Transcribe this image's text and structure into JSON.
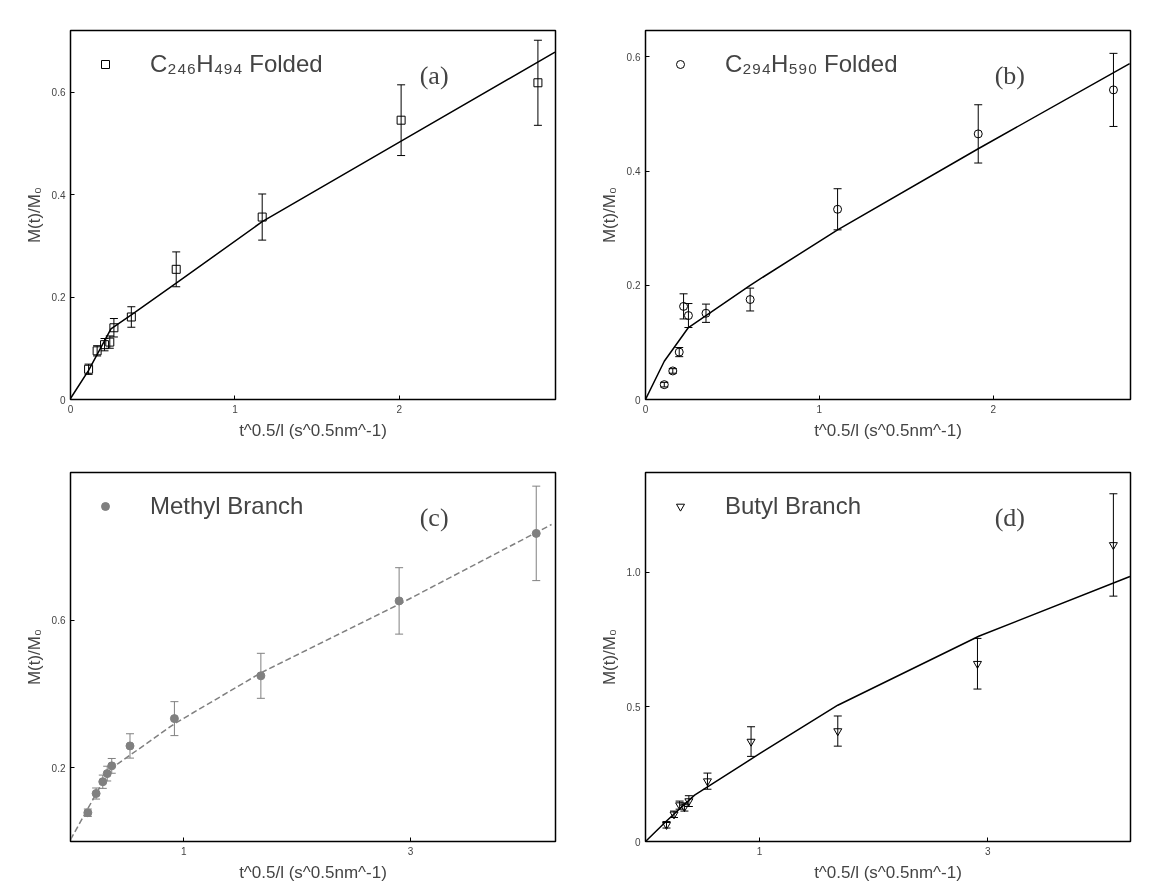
{
  "chart_data": [
    {
      "type": "scatter",
      "xlabel": "t^0.5/l (s^0.5nm^-1)",
      "ylabel": "M(t)/M₀",
      "annotations": [
        "(a)"
      ],
      "xlim": [
        0,
        2.95
      ],
      "ylim": [
        0,
        0.72
      ],
      "xticks": [
        0,
        1,
        2
      ],
      "yticks": [
        0,
        0.2,
        0.4,
        0.6
      ],
      "grid": false,
      "legend": "top left",
      "series": [
        {
          "name": "C₂₄₆H₄₉₄ Folded",
          "marker": "square",
          "color": "#000000",
          "x": [
            0.11,
            0.162,
            0.207,
            0.239,
            0.264,
            0.37,
            0.643,
            1.166,
            2.011,
            2.843
          ],
          "values": [
            0.059,
            0.095,
            0.107,
            0.112,
            0.14,
            0.161,
            0.254,
            0.356,
            0.545,
            0.618
          ],
          "errors": [
            0.01,
            0.01,
            0.012,
            0.012,
            0.018,
            0.02,
            0.034,
            0.045,
            0.069,
            0.083
          ]
        },
        {
          "type": "line",
          "color": "#000000",
          "line_style": "solid",
          "x": [
            0,
            0.11,
            0.246,
            0.37,
            0.643,
            1.166,
            2.011,
            2.947
          ],
          "values": [
            0.002,
            0.057,
            0.138,
            0.165,
            0.227,
            0.347,
            0.504,
            0.678
          ]
        }
      ]
    },
    {
      "type": "scatter",
      "xlabel": "t^0.5/l (s^0.5nm^-1)",
      "ylabel": "M(t)/M₀",
      "annotations": [
        "(b)"
      ],
      "xlim": [
        0,
        2.79
      ],
      "ylim": [
        0,
        0.646
      ],
      "xticks": [
        0,
        1,
        2
      ],
      "yticks": [
        0,
        0.2,
        0.4,
        0.6
      ],
      "grid": false,
      "legend": "top left",
      "series": [
        {
          "name": "C₂₉₄H₅₉₀ Folded",
          "marker": "circle",
          "color": "#000000",
          "x": [
            0.108,
            0.157,
            0.194,
            0.219,
            0.247,
            0.348,
            0.602,
            1.105,
            1.914,
            2.692
          ],
          "values": [
            0.026,
            0.05,
            0.083,
            0.163,
            0.147,
            0.151,
            0.175,
            0.333,
            0.465,
            0.542
          ],
          "errors": [
            0.004,
            0.004,
            0.008,
            0.022,
            0.021,
            0.016,
            0.02,
            0.036,
            0.051,
            0.064
          ]
        },
        {
          "type": "line",
          "color": "#000000",
          "line_style": "solid",
          "x": [
            0,
            0.108,
            0.247,
            0.602,
            1.105,
            1.914,
            2.785
          ],
          "values": [
            0,
            0.067,
            0.126,
            0.2,
            0.297,
            0.439,
            0.588
          ]
        }
      ]
    },
    {
      "type": "scatter",
      "xlabel": "t^0.5/l (s^0.5nm^-1)",
      "ylabel": "M(t)/M₀",
      "annotations": [
        "(c)"
      ],
      "xlim": [
        0,
        4.28
      ],
      "ylim": [
        0,
        1.0
      ],
      "xticks": [
        1,
        3
      ],
      "yticks": [
        0.2,
        0.6
      ],
      "grid": false,
      "legend": "top left",
      "series": [
        {
          "name": "Methyl Branch",
          "marker": "circle",
          "color": "#808080",
          "x": [
            0.153,
            0.226,
            0.285,
            0.324,
            0.364,
            0.525,
            0.917,
            1.68,
            2.9,
            4.11
          ],
          "values": [
            0.078,
            0.13,
            0.162,
            0.184,
            0.205,
            0.259,
            0.333,
            0.449,
            0.652,
            0.835
          ],
          "errors": [
            0.01,
            0.015,
            0.018,
            0.02,
            0.02,
            0.033,
            0.046,
            0.061,
            0.09,
            0.128
          ]
        },
        {
          "type": "line",
          "color": "#808080",
          "line_style": "dashed",
          "x": [
            0,
            0.364,
            0.42,
            0.917,
            1.68,
            2.9,
            4.245
          ],
          "values": [
            0.005,
            0.205,
            0.211,
            0.319,
            0.457,
            0.643,
            0.859
          ]
        }
      ]
    },
    {
      "type": "scatter",
      "xlabel": "t^0.5/l (s^0.5nm^-1)",
      "ylabel": "M(t)/M₀",
      "annotations": [
        "(d)"
      ],
      "xlim": [
        0,
        4.25
      ],
      "ylim": [
        0,
        1.37
      ],
      "xticks": [
        1,
        3
      ],
      "yticks": [
        0,
        0.5,
        {
          "value": 1.0,
          "label": "1.0"
        }
      ],
      "grid": false,
      "legend": "top left",
      "series": [
        {
          "name": "Butyl Branch",
          "marker": "triangle",
          "color": "#000000",
          "x": [
            0.184,
            0.25,
            0.299,
            0.341,
            0.38,
            0.543,
            0.925,
            1.685,
            2.909,
            4.1
          ],
          "values": [
            0.062,
            0.101,
            0.135,
            0.128,
            0.15,
            0.224,
            0.371,
            0.41,
            0.66,
            1.101
          ],
          "errors": [
            0.012,
            0.012,
            0.015,
            0.015,
            0.02,
            0.03,
            0.055,
            0.056,
            0.094,
            0.19
          ]
        },
        {
          "type": "line",
          "color": "#000000",
          "line_style": "solid",
          "x": [
            0,
            0.184,
            0.43,
            1.0,
            1.685,
            2.925,
            4.245
          ],
          "values": [
            0,
            0.076,
            0.172,
            0.326,
            0.506,
            0.763,
            0.984
          ]
        }
      ]
    }
  ]
}
